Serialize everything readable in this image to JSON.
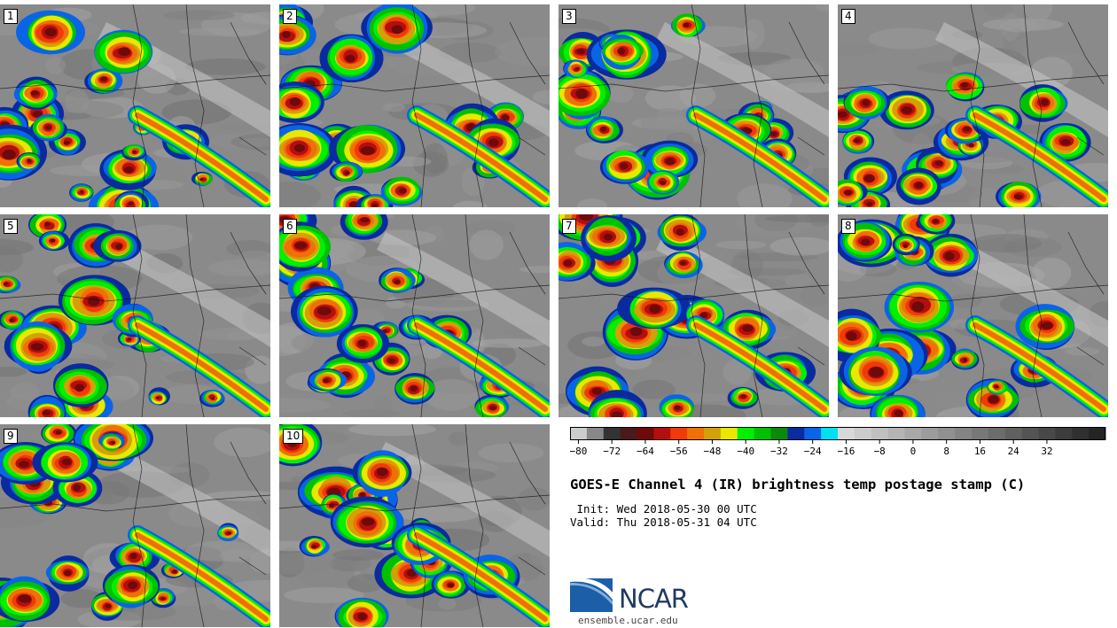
{
  "panels": [
    {
      "label": "1"
    },
    {
      "label": "2"
    },
    {
      "label": "3"
    },
    {
      "label": "4"
    },
    {
      "label": "5"
    },
    {
      "label": "6"
    },
    {
      "label": "7"
    },
    {
      "label": "8"
    },
    {
      "label": "9"
    },
    {
      "label": "10"
    }
  ],
  "colorbar": {
    "colors": [
      "#cccccc",
      "#888888",
      "#333333",
      "#4a1a1a",
      "#6e0a0a",
      "#b40f0f",
      "#f03a0a",
      "#f07008",
      "#d4a008",
      "#e8e800",
      "#00f000",
      "#00c000",
      "#0a8a0a",
      "#0a2aa0",
      "#0a64e6",
      "#00e0f0",
      "#d8d8d8",
      "#cccccc",
      "#c0c0c0",
      "#b4b4b4",
      "#a8a8a8",
      "#9c9c9c",
      "#909090",
      "#848484",
      "#787878",
      "#6c6c6c",
      "#606060",
      "#545454",
      "#484848",
      "#3c3c3c",
      "#303030",
      "#242424"
    ],
    "ticks": [
      "−80",
      "−72",
      "−64",
      "−56",
      "−48",
      "−40",
      "−32",
      "−24",
      "−16",
      "−8",
      "0",
      "8",
      "16",
      "24",
      "32"
    ]
  },
  "title": "GOES-E Channel 4 (IR) brightness temp postage stamp (C)",
  "init": " Init: Wed 2018-05-30 00 UTC",
  "valid": "Valid: Thu 2018-05-31 04 UTC",
  "logo": {
    "text": "NCAR",
    "colors": {
      "blue": "#1c5fa8",
      "navy": "#1f3a64"
    }
  },
  "url": "ensemble.ucar.edu"
}
